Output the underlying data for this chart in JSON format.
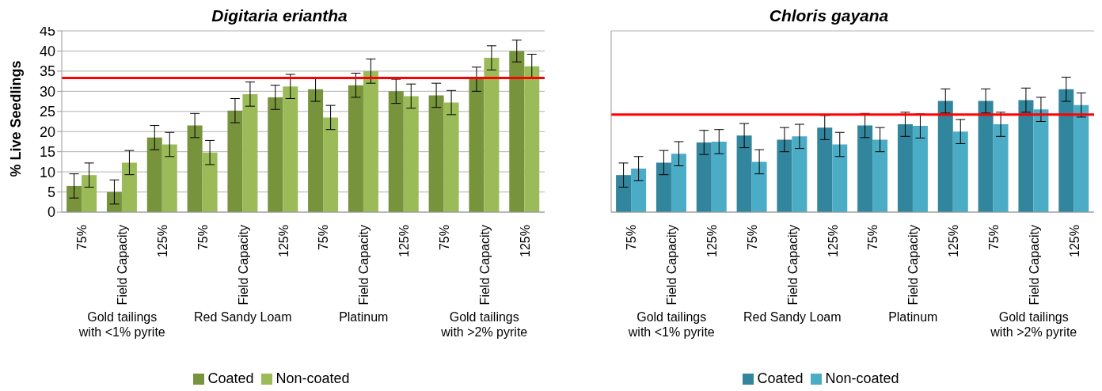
{
  "chart_data": [
    {
      "type": "bar",
      "title": "Digitaria eriantha",
      "ylabel": "% Live Seedlings",
      "categories": [
        "75%",
        "Field Capacity",
        "125%",
        "75%",
        "Field Capacity",
        "125%",
        "75%",
        "Field Capacity",
        "125%",
        "75%",
        "Field Capacity",
        "125%"
      ],
      "series": [
        {
          "name": "Coated",
          "color": "#77933c",
          "values": [
            6.5,
            5,
            18.5,
            21.5,
            25.2,
            28.5,
            30.5,
            31.5,
            30,
            29,
            33,
            40
          ],
          "errors": [
            3,
            3,
            3,
            3,
            3,
            3,
            3,
            3,
            3,
            3,
            3,
            2.7
          ]
        },
        {
          "name": "Non-coated",
          "color": "#9bbb59",
          "values": [
            9.2,
            12.3,
            16.8,
            14.8,
            29.3,
            31.2,
            23.5,
            35,
            28.8,
            27.2,
            38.3,
            36.2
          ],
          "errors": [
            3,
            3,
            3,
            3,
            3,
            3,
            3,
            3,
            3,
            3,
            3,
            3
          ]
        }
      ],
      "ylim": [
        0,
        45
      ],
      "yticks": [
        0,
        5,
        10,
        15,
        20,
        25,
        30,
        35,
        40,
        45
      ],
      "grid": "y",
      "legend": "bottom",
      "ref_lines": [
        {
          "axis": "y",
          "value": 33.3,
          "color": "#ff0000"
        }
      ],
      "annotations": [
        "Gold tailings with <1% pyrite",
        "Red Sandy Loam",
        "Platinum",
        "Gold tailings with >2% pyrite"
      ]
    },
    {
      "type": "bar",
      "title": "Chloris gayana",
      "categories": [
        "75%",
        "Field Capacity",
        "125%",
        "75%",
        "Field Capacity",
        "125%",
        "75%",
        "Field Capacity",
        "125%",
        "75%",
        "Field Capacity",
        "125%"
      ],
      "series": [
        {
          "name": "Coated",
          "color": "#31859c",
          "values": [
            9.2,
            12.3,
            17.3,
            19,
            18,
            21,
            21.5,
            21.8,
            27.6,
            27.6,
            27.8,
            30.5
          ],
          "errors": [
            3,
            3,
            3,
            3,
            3,
            3,
            3,
            3,
            3,
            3,
            3,
            3
          ]
        },
        {
          "name": "Non-coated",
          "color": "#4bacc6",
          "values": [
            10.8,
            14.5,
            17.5,
            12.5,
            18.8,
            16.8,
            18,
            21.4,
            20,
            21.8,
            25.5,
            26.6
          ],
          "errors": [
            3,
            3,
            3,
            3,
            3,
            3,
            3,
            3,
            3,
            3,
            3,
            3
          ]
        }
      ],
      "ylim": [
        0,
        45
      ],
      "yticks": [
        0,
        5,
        10,
        15,
        20,
        25,
        30,
        35,
        40,
        45
      ],
      "tick_labels": "x",
      "grid": "y",
      "legend": "bottom",
      "ref_lines": [
        {
          "axis": "y",
          "value": 24.2,
          "color": "#ff0000"
        }
      ],
      "annotations": [
        "Gold tailings with <1% pyrite",
        "Red Sandy Loam",
        "Platinum",
        "Gold tailings with >2% pyrite"
      ]
    }
  ]
}
